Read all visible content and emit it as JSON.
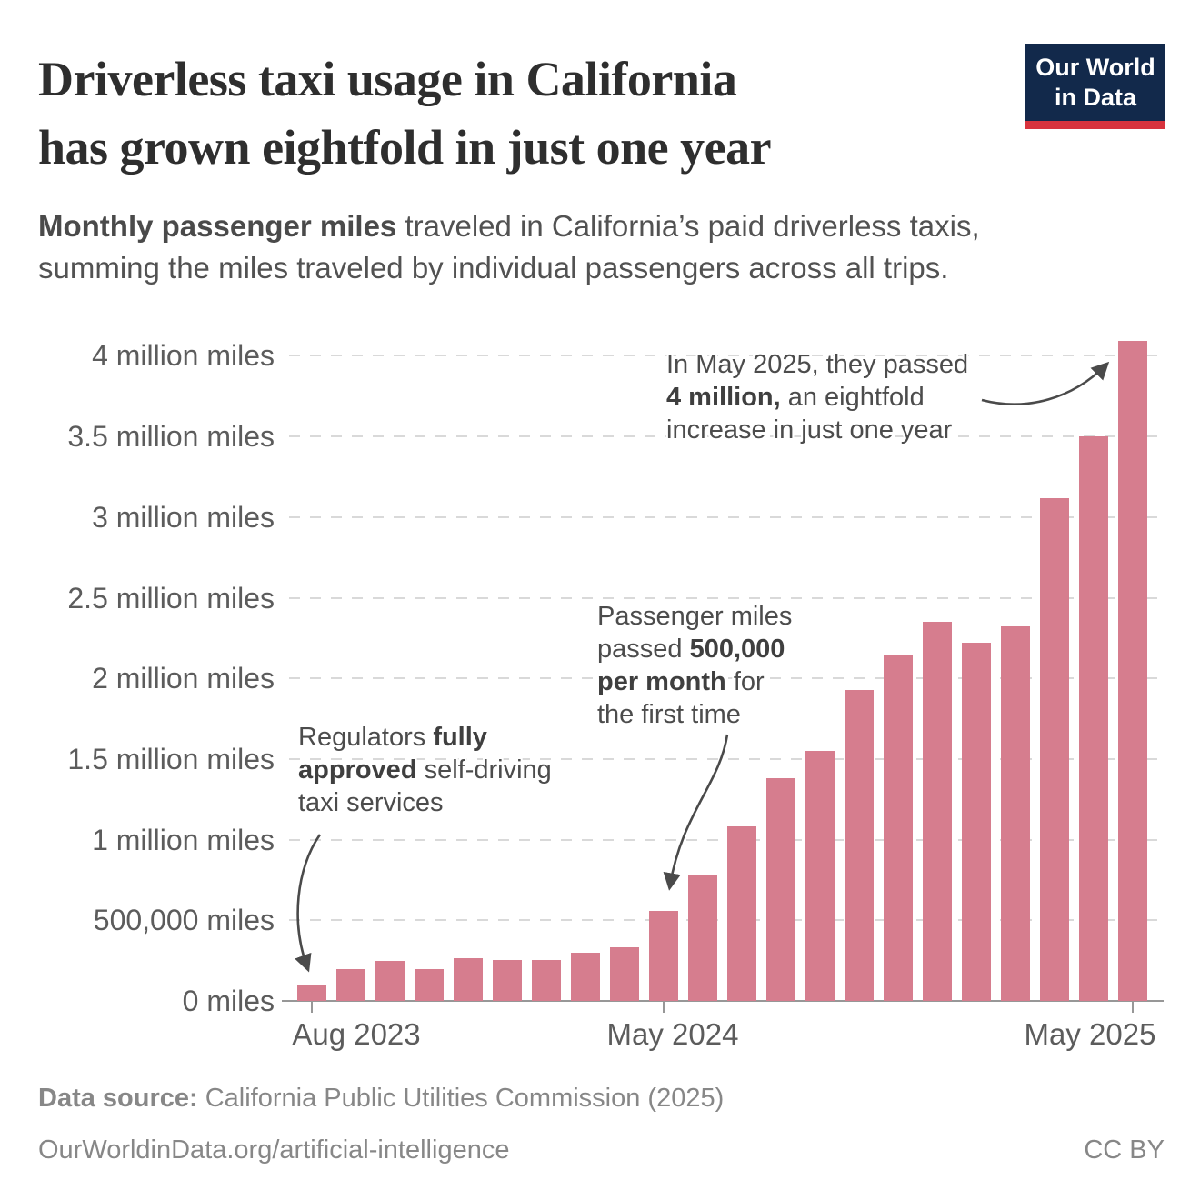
{
  "header": {
    "title_line1": "Driverless taxi usage in California",
    "title_line2": "has grown eightfold in just one year",
    "subtitle_bold": "Monthly passenger miles",
    "subtitle_rest_line1": " traveled in California’s paid driverless taxis,",
    "subtitle_line2": "summing the miles traveled by individual passengers across all trips.",
    "logo_line1": "Our World",
    "logo_line2": "in Data",
    "logo_bg_color": "#12294b",
    "logo_accent_color": "#d8333e"
  },
  "chart_data": {
    "type": "bar",
    "title": "Monthly passenger miles traveled in California's paid driverless taxis",
    "unit": "miles",
    "bar_color": "#d67d8e",
    "grid": "dashed-horizontal",
    "ylim": [
      0,
      4250000
    ],
    "categories": [
      "Aug 2023",
      "Sep 2023",
      "Oct 2023",
      "Nov 2023",
      "Dec 2023",
      "Jan 2024",
      "Feb 2024",
      "Mar 2024",
      "Apr 2024",
      "May 2024",
      "Jun 2024",
      "Jul 2024",
      "Aug 2024",
      "Sep 2024",
      "Oct 2024",
      "Nov 2024",
      "Dec 2024",
      "Jan 2025",
      "Feb 2025",
      "Mar 2025",
      "Apr 2025",
      "May 2025"
    ],
    "values": [
      100000,
      195000,
      250000,
      195000,
      265000,
      255000,
      255000,
      300000,
      330000,
      560000,
      780000,
      1080000,
      1380000,
      1550000,
      1930000,
      2150000,
      2350000,
      2220000,
      2320000,
      3120000,
      3500000,
      4090000
    ],
    "y_ticks": [
      {
        "value": 4000000,
        "label": "4 million miles"
      },
      {
        "value": 3500000,
        "label": "3.5 million miles"
      },
      {
        "value": 3000000,
        "label": "3 million miles"
      },
      {
        "value": 2500000,
        "label": "2.5 million miles"
      },
      {
        "value": 2000000,
        "label": "2 million miles"
      },
      {
        "value": 1500000,
        "label": "1.5 million miles"
      },
      {
        "value": 1000000,
        "label": "1 million miles"
      },
      {
        "value": 500000,
        "label": "500,000 miles"
      },
      {
        "value": 0,
        "label": "0 miles"
      }
    ],
    "x_ticks": [
      {
        "index": 0,
        "label": "Aug 2023"
      },
      {
        "index": 9,
        "label": "May 2024"
      },
      {
        "index": 21,
        "label": "May 2025"
      }
    ],
    "annotations": [
      {
        "id": "regulators-approved",
        "lines": [
          [
            {
              "t": "Regulators ",
              "b": false
            },
            {
              "t": "fully",
              "b": true
            }
          ],
          [
            {
              "t": "approved",
              "b": true
            },
            {
              "t": " self-driving",
              "b": false
            }
          ],
          [
            {
              "t": "taxi services",
              "b": false
            }
          ]
        ]
      },
      {
        "id": "passed-500k",
        "lines": [
          [
            {
              "t": "Passenger miles",
              "b": false
            }
          ],
          [
            {
              "t": "passed ",
              "b": false
            },
            {
              "t": "500,000",
              "b": true
            }
          ],
          [
            {
              "t": "per month",
              "b": true
            },
            {
              "t": " for",
              "b": false
            }
          ],
          [
            {
              "t": "the first time",
              "b": false
            }
          ]
        ]
      },
      {
        "id": "passed-4m",
        "lines": [
          [
            {
              "t": "In May 2025, they passed",
              "b": false
            }
          ],
          [
            {
              "t": "4 million,",
              "b": true
            },
            {
              "t": " an eightfold",
              "b": false
            }
          ],
          [
            {
              "t": "increase in just one year",
              "b": false
            }
          ]
        ]
      }
    ]
  },
  "footer": {
    "source_label": "Data source:",
    "source_text": " California Public Utilities Commission (2025)",
    "url": "OurWorldinData.org/artificial-intelligence",
    "license": "CC BY"
  }
}
